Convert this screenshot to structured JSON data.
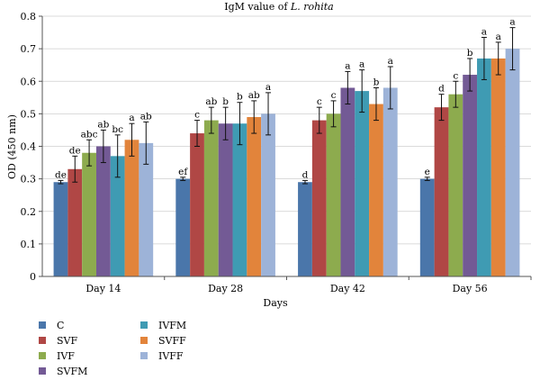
{
  "chart_data": {
    "type": "bar",
    "title_main": "IgM value of ",
    "title_italic": "L. rohita",
    "xlabel": "Days",
    "ylabel": "OD (450 nm)",
    "ylim": [
      0,
      0.8
    ],
    "yticks": [
      "0",
      "0.1",
      "0.2",
      "0.3",
      "0.4",
      "0.5",
      "0.6",
      "0.7",
      "0.8"
    ],
    "grid": true,
    "legend_position": "bottom-left",
    "categories": [
      "Day 14",
      "Day 28",
      "Day 42",
      "Day 56"
    ],
    "series": [
      {
        "name": "C",
        "color": "#4a76aa",
        "values": [
          0.29,
          0.3,
          0.29,
          0.3
        ],
        "errors": [
          0.005,
          0.005,
          0.005,
          0.005
        ],
        "letters": [
          "de",
          "ef",
          "d",
          "e"
        ]
      },
      {
        "name": "SVF",
        "color": "#b04745",
        "values": [
          0.33,
          0.44,
          0.48,
          0.52
        ],
        "errors": [
          0.04,
          0.04,
          0.04,
          0.04
        ],
        "letters": [
          "de",
          "c",
          "c",
          "d"
        ]
      },
      {
        "name": "IVF",
        "color": "#8dab4e",
        "values": [
          0.38,
          0.48,
          0.5,
          0.56
        ],
        "errors": [
          0.04,
          0.04,
          0.04,
          0.04
        ],
        "letters": [
          "abc",
          "ab",
          "c",
          "c"
        ]
      },
      {
        "name": "SVFM",
        "color": "#735a95",
        "values": [
          0.4,
          0.47,
          0.58,
          0.62
        ],
        "errors": [
          0.05,
          0.05,
          0.05,
          0.05
        ],
        "letters": [
          "ab",
          "b",
          "a",
          "b"
        ]
      },
      {
        "name": "IVFM",
        "color": "#3f9bb3",
        "values": [
          0.37,
          0.47,
          0.57,
          0.67
        ],
        "errors": [
          0.065,
          0.065,
          0.065,
          0.065
        ],
        "letters": [
          "bc",
          "b",
          "a",
          "a"
        ]
      },
      {
        "name": "SVFF",
        "color": "#e2843b",
        "values": [
          0.42,
          0.49,
          0.53,
          0.67
        ],
        "errors": [
          0.05,
          0.05,
          0.05,
          0.05
        ],
        "letters": [
          "a",
          "ab",
          "b",
          "a"
        ]
      },
      {
        "name": "IVFF",
        "color": "#9db3d8",
        "values": [
          0.41,
          0.5,
          0.58,
          0.7
        ],
        "errors": [
          0.065,
          0.065,
          0.065,
          0.065
        ],
        "letters": [
          "ab",
          "a",
          "a",
          "a"
        ]
      }
    ]
  }
}
